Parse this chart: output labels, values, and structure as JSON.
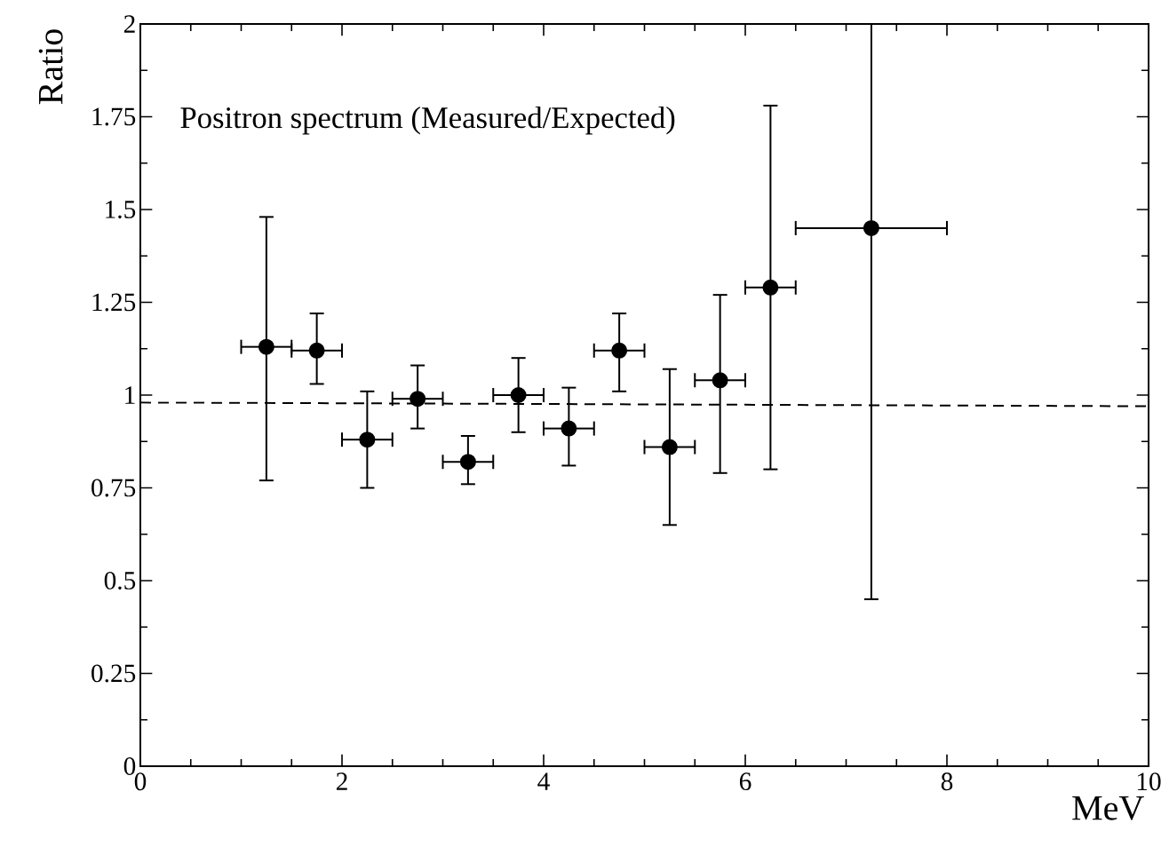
{
  "chart_data": {
    "type": "scatter",
    "xlabel": "MeV",
    "ylabel": "Ratio",
    "annotations": [
      "Positron spectrum (Measured/Expected)"
    ],
    "xlim": [
      0,
      10
    ],
    "ylim": [
      0,
      2
    ],
    "xticks": [
      0,
      2,
      4,
      6,
      8,
      10
    ],
    "yticks": [
      0,
      0.25,
      0.5,
      0.75,
      1,
      1.25,
      1.5,
      1.75,
      2
    ],
    "grid": false,
    "series": [
      {
        "marker": "circle",
        "color": "#000000",
        "x": [
          1.25,
          1.75,
          2.25,
          2.75,
          3.25,
          3.75,
          4.25,
          4.75,
          5.25,
          5.75,
          6.25,
          7.25
        ],
        "values": [
          1.13,
          1.12,
          0.88,
          0.99,
          0.82,
          1.0,
          0.91,
          1.12,
          0.86,
          1.04,
          1.29,
          1.45
        ],
        "errors": [
          [
            0.77,
            1.48
          ],
          [
            1.03,
            1.22
          ],
          [
            0.75,
            1.01
          ],
          [
            0.91,
            1.08
          ],
          [
            0.76,
            0.89
          ],
          [
            0.9,
            1.1
          ],
          [
            0.81,
            1.02
          ],
          [
            1.01,
            1.22
          ],
          [
            0.65,
            1.07
          ],
          [
            0.79,
            1.27
          ],
          [
            0.8,
            1.78
          ],
          [
            0.45,
            2.0
          ]
        ],
        "xerrors": [
          [
            1.0,
            1.5
          ],
          [
            1.5,
            2.0
          ],
          [
            2.0,
            2.5
          ],
          [
            2.5,
            3.0
          ],
          [
            3.0,
            3.5
          ],
          [
            3.5,
            4.0
          ],
          [
            4.0,
            4.5
          ],
          [
            4.5,
            5.0
          ],
          [
            5.0,
            5.5
          ],
          [
            5.5,
            6.0
          ],
          [
            6.0,
            6.5
          ],
          [
            6.5,
            8.0
          ]
        ]
      },
      {
        "type": "line",
        "line_style": "dashed",
        "marker": "none",
        "color": "#000000",
        "x": [
          0,
          10
        ],
        "values": [
          0.98,
          0.97
        ]
      }
    ]
  }
}
